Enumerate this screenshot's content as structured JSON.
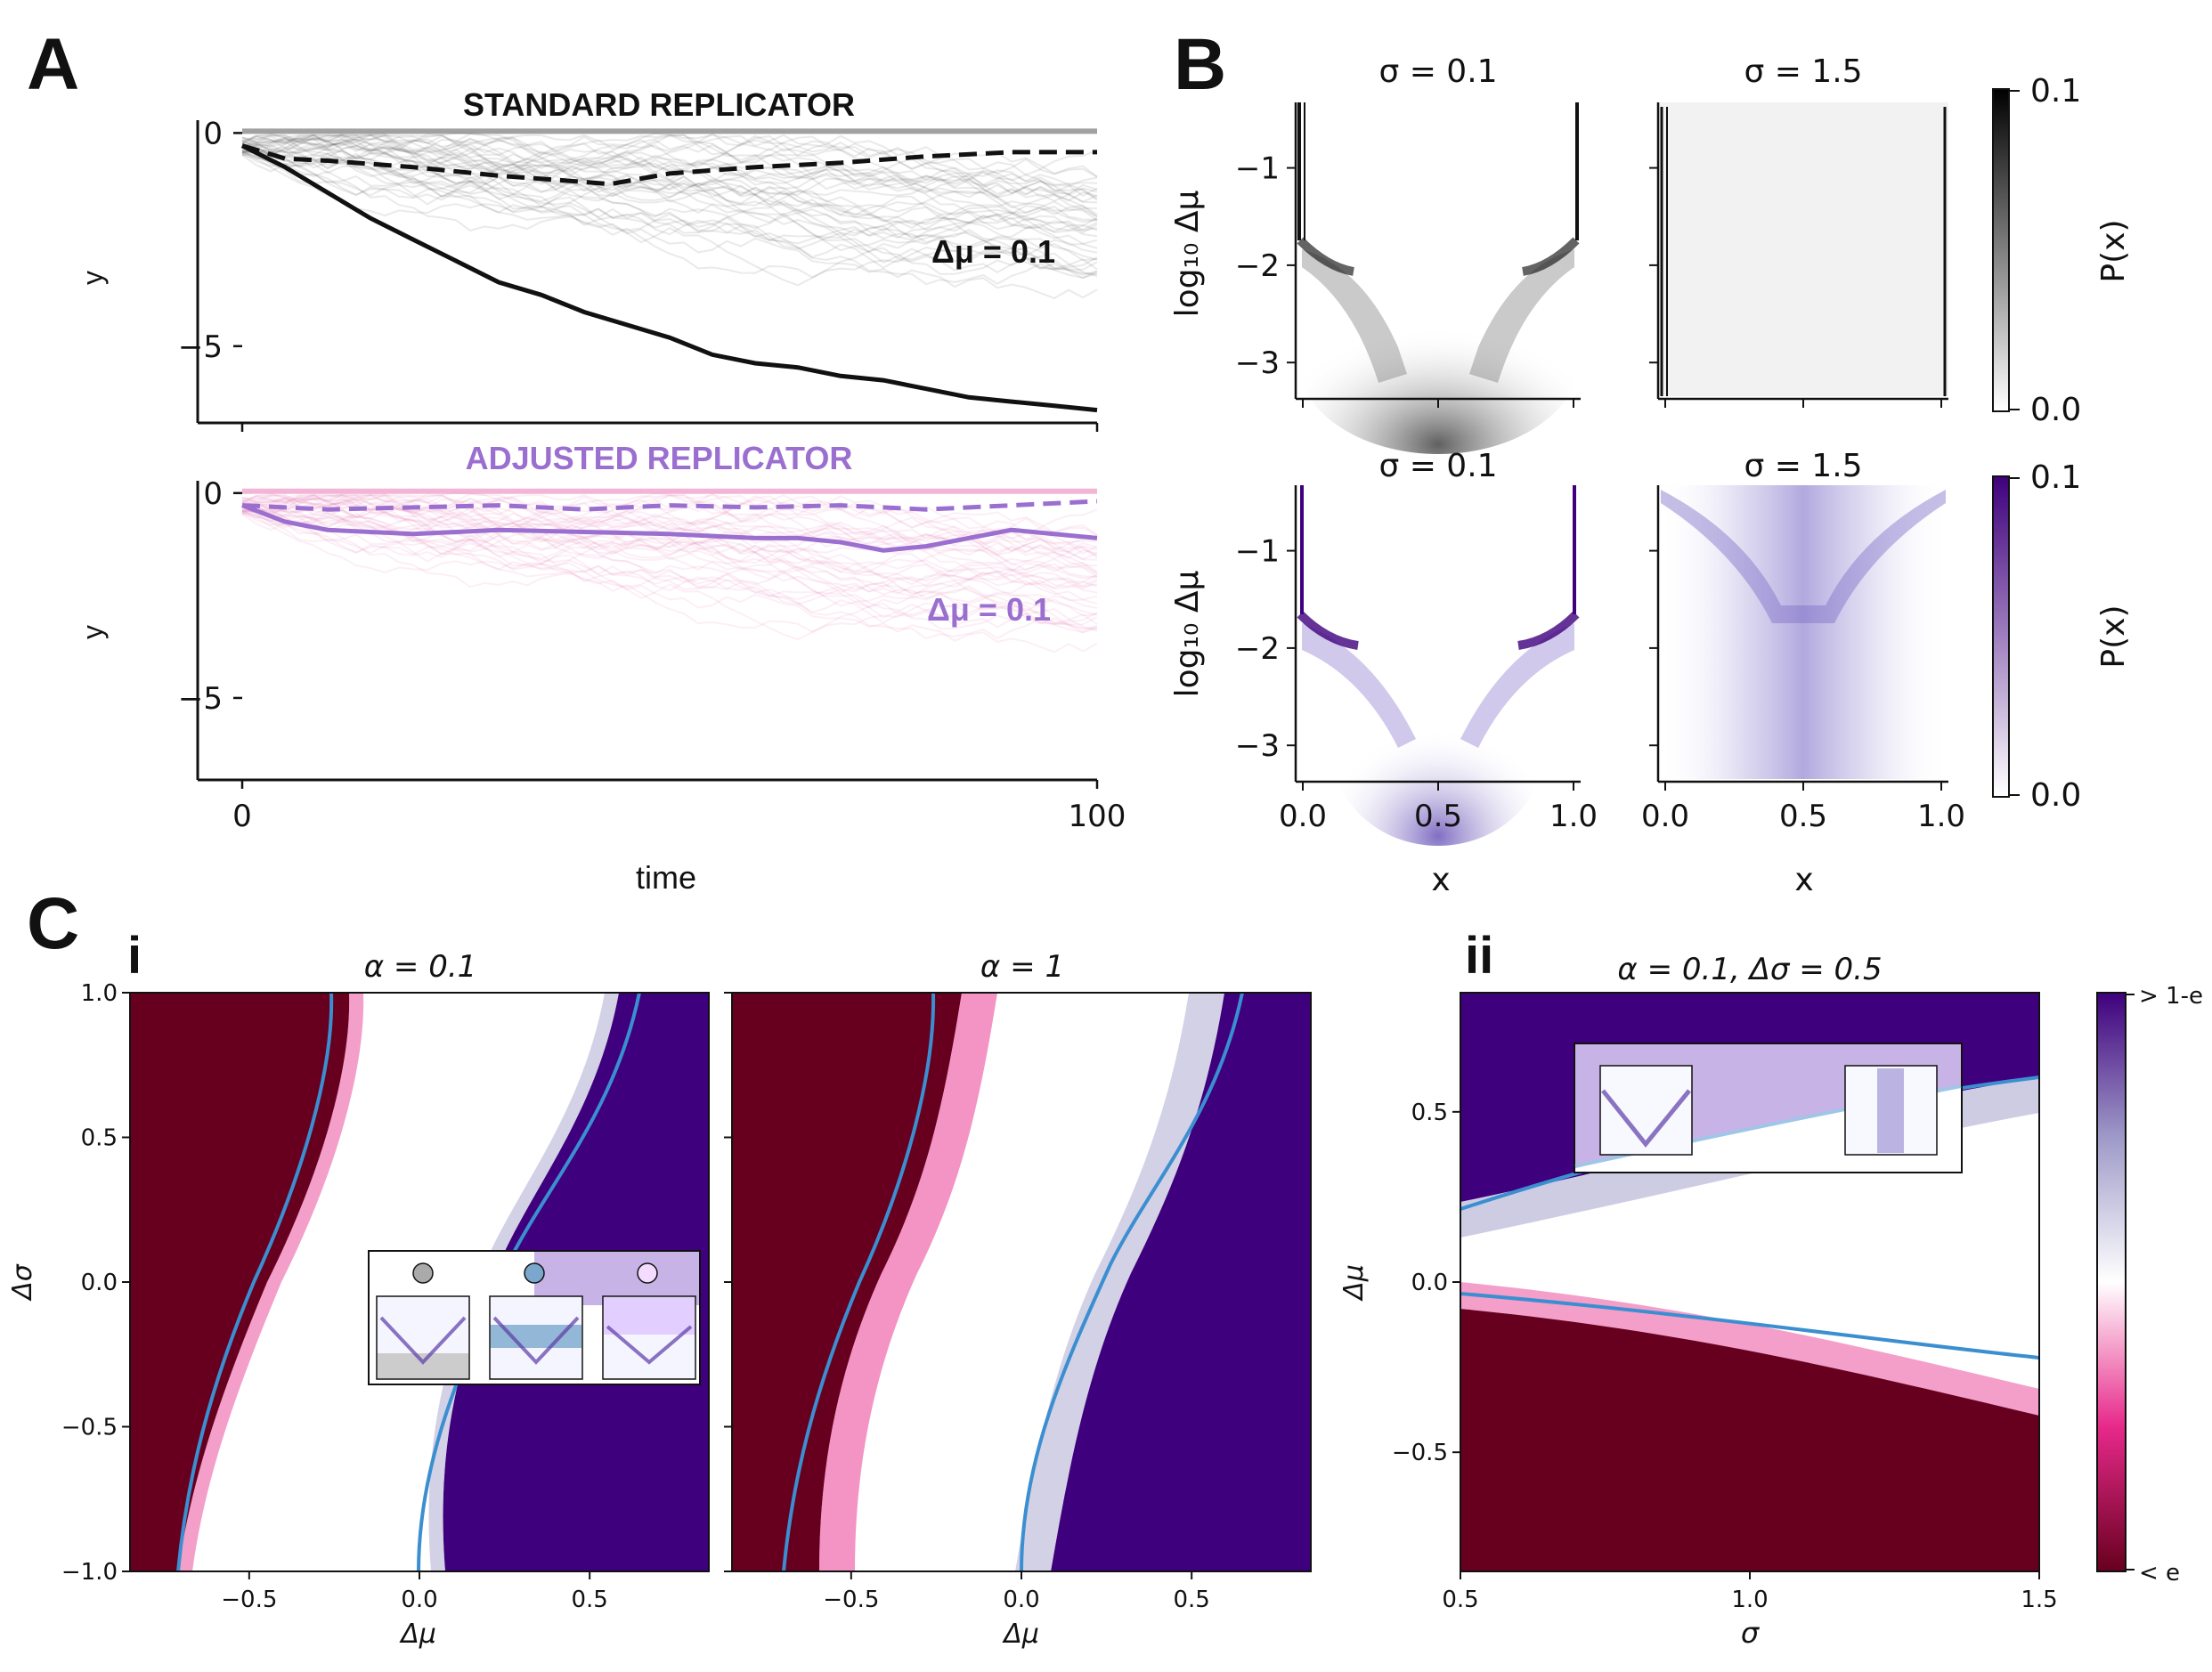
{
  "panel_labels": {
    "a": "A",
    "b": "B",
    "c": "C",
    "ci": "i",
    "cii": "ii"
  },
  "colors": {
    "black": "#111111",
    "purple": "#9b6fd0",
    "pink": "#f2a9d0",
    "dark_red": "#67001f",
    "dark_purple": "#3f007d",
    "blue_line": "#3b8fd0",
    "heat_purple": "#5b3aa6"
  },
  "chart_data": [
    {
      "id": "A-top",
      "type": "line",
      "title": "STANDARD REPLICATOR",
      "xlabel": "",
      "ylabel": "y",
      "xlim": [
        0,
        100
      ],
      "ylim": [
        -6.8,
        0.3
      ],
      "yticks": [
        0,
        -5
      ],
      "yticklabels": [
        "0",
        "−5"
      ],
      "annotation": "Δμ = 0.1",
      "series": [
        {
          "style": "dashed",
          "x": [
            0,
            5,
            10,
            20,
            30,
            40,
            43,
            50,
            60,
            70,
            80,
            90,
            100
          ],
          "y": [
            -0.3,
            -0.6,
            -0.65,
            -0.8,
            -1.0,
            -1.15,
            -1.2,
            -0.95,
            -0.8,
            -0.7,
            -0.55,
            -0.45,
            -0.45
          ]
        },
        {
          "style": "solid",
          "x": [
            0,
            5,
            10,
            15,
            20,
            25,
            30,
            35,
            40,
            45,
            50,
            55,
            60,
            65,
            70,
            75,
            80,
            85,
            90,
            95,
            100
          ],
          "y": [
            -0.3,
            -0.8,
            -1.4,
            -2.0,
            -2.5,
            -3.0,
            -3.5,
            -3.8,
            -4.2,
            -4.5,
            -4.8,
            -5.2,
            -5.4,
            -5.5,
            -5.7,
            -5.8,
            -6.0,
            -6.2,
            -6.3,
            -6.4,
            -6.5
          ]
        }
      ]
    },
    {
      "id": "A-bottom",
      "type": "line",
      "title": "ADJUSTED REPLICATOR",
      "xlabel": "time",
      "ylabel": "y",
      "xlim": [
        0,
        100
      ],
      "ylim": [
        -7,
        0.3
      ],
      "xticks": [
        0,
        100
      ],
      "xticklabels": [
        "0",
        "100"
      ],
      "yticks": [
        0,
        -5
      ],
      "yticklabels": [
        "0",
        "−5"
      ],
      "annotation": "Δμ = 0.1",
      "series": [
        {
          "style": "dashed",
          "x": [
            0,
            5,
            10,
            20,
            30,
            40,
            50,
            60,
            70,
            80,
            90,
            100
          ],
          "y": [
            -0.3,
            -0.35,
            -0.4,
            -0.35,
            -0.3,
            -0.4,
            -0.3,
            -0.35,
            -0.3,
            -0.4,
            -0.3,
            -0.2
          ]
        },
        {
          "style": "solid",
          "x": [
            0,
            5,
            10,
            20,
            30,
            40,
            50,
            60,
            65,
            70,
            75,
            80,
            90,
            100
          ],
          "y": [
            -0.3,
            -0.7,
            -0.9,
            -1.0,
            -0.9,
            -0.95,
            -1.0,
            -1.1,
            -1.1,
            -1.2,
            -1.4,
            -1.3,
            -0.9,
            -1.1
          ]
        }
      ]
    },
    {
      "id": "B",
      "type": "heatmap",
      "ylabel": "log₁₀ Δμ",
      "xlabel": "x",
      "xlim": [
        0,
        1
      ],
      "ylim": [
        -3.3,
        -0.4
      ],
      "xticks": [
        0.0,
        0.5,
        1.0
      ],
      "xticklabels": [
        "0.0",
        "0.5",
        "1.0"
      ],
      "yticks": [
        -1,
        -2,
        -3
      ],
      "yticklabels": [
        "−1",
        "−2",
        "−3"
      ],
      "panels": [
        {
          "title": "σ = 0.1",
          "row": "standard"
        },
        {
          "title": "σ = 1.5",
          "row": "standard"
        },
        {
          "title": "σ = 0.1",
          "row": "adjusted"
        },
        {
          "title": "σ = 1.5",
          "row": "adjusted"
        }
      ],
      "colorbars": [
        {
          "label": "P(x)",
          "range": [
            0.0,
            0.1
          ],
          "ticklabels": [
            "0.1",
            "0.0"
          ],
          "color": "#111111"
        },
        {
          "label": "P(x)",
          "range": [
            0.0,
            0.1
          ],
          "ticklabels": [
            "0.1",
            "0.0"
          ],
          "color": "#3f007d"
        }
      ]
    },
    {
      "id": "C-i-left",
      "type": "heatmap",
      "title": "α = 0.1",
      "xlabel": "Δμ",
      "ylabel": "Δσ",
      "xlim": [
        -0.85,
        0.85
      ],
      "ylim": [
        -1.0,
        1.0
      ],
      "xticks": [
        -0.5,
        0.0,
        0.5
      ],
      "xticklabels": [
        "−0.5",
        "0.0",
        "0.5"
      ],
      "yticks": [
        1.0,
        0.5,
        0.0,
        -0.5,
        -1.0
      ],
      "yticklabels": [
        "1.0",
        "0.5",
        "0.0",
        "−0.5",
        "−1.0"
      ]
    },
    {
      "id": "C-i-right",
      "type": "heatmap",
      "title": "α = 1",
      "xlabel": "Δμ",
      "xlim": [
        -0.85,
        0.85
      ],
      "ylim": [
        -1.0,
        1.0
      ],
      "xticks": [
        -0.5,
        0.0,
        0.5
      ],
      "xticklabels": [
        "−0.5",
        "0.0",
        "0.5"
      ]
    },
    {
      "id": "C-ii",
      "type": "heatmap",
      "title": "α = 0.1, Δσ = 0.5",
      "xlabel": "σ",
      "ylabel": "Δμ",
      "xlim": [
        0.5,
        1.5
      ],
      "ylim": [
        -0.85,
        0.85
      ],
      "xticks": [
        0.5,
        1.0,
        1.5
      ],
      "xticklabels": [
        "0.5",
        "1.0",
        "1.5"
      ],
      "yticks": [
        0.5,
        0.0,
        -0.5
      ],
      "yticklabels": [
        "0.5",
        "0.0",
        "−0.5"
      ],
      "colorbar": {
        "top_label": "> 1-e",
        "bottom_label": "< e"
      }
    }
  ]
}
